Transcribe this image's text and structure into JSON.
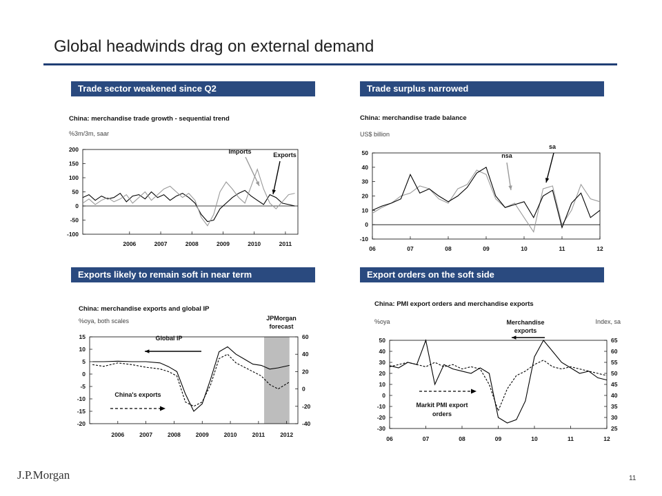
{
  "slide": {
    "title": "Global headwinds drag on external demand",
    "logo": "J.P.Morgan",
    "page_number": "11",
    "colors": {
      "header_bg": "#2a4a7f",
      "rule": "#1f3e74",
      "series_black": "#000000",
      "series_gray": "#999999",
      "shade": "#bdbdbd"
    }
  },
  "panels": [
    {
      "header": "Trade sector weakened since Q2"
    },
    {
      "header": "Trade surplus narrowed"
    },
    {
      "header": "Exports likely to remain soft in near term"
    },
    {
      "header": "Export orders on the soft side"
    }
  ],
  "chart_data": [
    {
      "type": "line",
      "title": "China: merchandise trade growth - sequential trend",
      "subtitle": "%3m/3m, saar",
      "ylim": [
        -100,
        200
      ],
      "yticks": [
        "200",
        "150",
        "100",
        "50",
        "0",
        "-50",
        "-100"
      ],
      "xlim": [
        2005.0,
        2011.9
      ],
      "xticks": [
        "2006",
        "2007",
        "2008",
        "2009",
        "2010",
        "2011"
      ],
      "annotations": [
        "Imports",
        "Exports"
      ],
      "series": [
        {
          "name": "Exports",
          "color": "#000000",
          "x": [
            2005.0,
            2005.2,
            2005.4,
            2005.6,
            2005.8,
            2006.0,
            2006.2,
            2006.4,
            2006.6,
            2006.8,
            2007.0,
            2007.2,
            2007.4,
            2007.6,
            2007.8,
            2008.0,
            2008.2,
            2008.4,
            2008.6,
            2008.8,
            2009.0,
            2009.2,
            2009.4,
            2009.6,
            2009.8,
            2010.0,
            2010.2,
            2010.4,
            2010.6,
            2010.8,
            2011.0,
            2011.2,
            2011.4,
            2011.6,
            2011.8
          ],
          "values": [
            30,
            40,
            20,
            35,
            25,
            30,
            45,
            15,
            35,
            40,
            25,
            50,
            30,
            40,
            20,
            35,
            45,
            30,
            10,
            -30,
            -55,
            -50,
            -10,
            10,
            30,
            45,
            55,
            35,
            20,
            5,
            40,
            30,
            10,
            5,
            0
          ]
        },
        {
          "name": "Imports",
          "color": "#999999",
          "x": [
            2005.0,
            2005.2,
            2005.4,
            2005.6,
            2005.8,
            2006.0,
            2006.2,
            2006.4,
            2006.6,
            2006.8,
            2007.0,
            2007.2,
            2007.4,
            2007.6,
            2007.8,
            2008.0,
            2008.2,
            2008.4,
            2008.6,
            2008.8,
            2009.0,
            2009.2,
            2009.4,
            2009.6,
            2009.8,
            2010.0,
            2010.2,
            2010.4,
            2010.6,
            2010.8,
            2011.0,
            2011.2,
            2011.4,
            2011.6,
            2011.8
          ],
          "values": [
            10,
            25,
            5,
            20,
            30,
            15,
            25,
            40,
            10,
            30,
            50,
            20,
            40,
            60,
            70,
            50,
            30,
            45,
            20,
            -40,
            -70,
            -30,
            50,
            85,
            60,
            30,
            10,
            70,
            130,
            60,
            10,
            -10,
            15,
            40,
            45
          ]
        }
      ]
    },
    {
      "type": "line",
      "title": "China: merchandise trade balance",
      "subtitle": "US$ billion",
      "ylim": [
        -10,
        50
      ],
      "yticks": [
        "50",
        "40",
        "30",
        "20",
        "10",
        "0",
        "-10"
      ],
      "xlim": [
        2006.0,
        2012.0
      ],
      "xticks": [
        "06",
        "07",
        "08",
        "09",
        "10",
        "11",
        "12"
      ],
      "annotations": [
        "nsa",
        "sa"
      ],
      "series": [
        {
          "name": "nsa",
          "color": "#999999",
          "x": [
            2006.0,
            2006.25,
            2006.5,
            2006.75,
            2007.0,
            2007.25,
            2007.5,
            2007.75,
            2008.0,
            2008.25,
            2008.5,
            2008.75,
            2009.0,
            2009.25,
            2009.5,
            2009.75,
            2010.0,
            2010.25,
            2010.5,
            2010.75,
            2011.0,
            2011.25,
            2011.5,
            2011.75,
            2012.0
          ],
          "values": [
            8,
            12,
            15,
            20,
            22,
            27,
            25,
            18,
            15,
            25,
            28,
            38,
            35,
            18,
            12,
            15,
            5,
            -5,
            25,
            27,
            0,
            10,
            28,
            18,
            16
          ]
        },
        {
          "name": "sa",
          "color": "#000000",
          "x": [
            2006.0,
            2006.25,
            2006.5,
            2006.75,
            2007.0,
            2007.25,
            2007.5,
            2007.75,
            2008.0,
            2008.25,
            2008.5,
            2008.75,
            2009.0,
            2009.25,
            2009.5,
            2009.75,
            2010.0,
            2010.25,
            2010.5,
            2010.75,
            2011.0,
            2011.25,
            2011.5,
            2011.75,
            2012.0
          ],
          "values": [
            10,
            13,
            15,
            18,
            35,
            22,
            25,
            20,
            16,
            20,
            26,
            36,
            40,
            20,
            12,
            14,
            16,
            5,
            20,
            24,
            -2,
            15,
            22,
            5,
            10
          ]
        }
      ]
    },
    {
      "type": "line",
      "title": "China: merchandise exports and global IP",
      "subtitle": "%oya, both scales",
      "ylim_left": [
        -20,
        15
      ],
      "ylim_right": [
        -40,
        60
      ],
      "yticks_left": [
        "15",
        "10",
        "5",
        "0",
        "-5",
        "-10",
        "-15",
        "-20"
      ],
      "yticks_right": [
        "60",
        "40",
        "20",
        "0",
        "-20",
        "-40"
      ],
      "xlim": [
        2005.5,
        2012.9
      ],
      "xticks": [
        "2006",
        "2007",
        "2008",
        "2009",
        "2010",
        "2011",
        "2012"
      ],
      "annotations": [
        "JPMorgan forecast",
        "Global IP",
        "China's exports"
      ],
      "forecast_region": [
        2011.7,
        2012.6
      ],
      "series": [
        {
          "name": "Global IP",
          "color": "#000000",
          "dash": false,
          "axis": "left",
          "x": [
            2005.6,
            2006.0,
            2006.5,
            2007.0,
            2007.5,
            2008.0,
            2008.3,
            2008.6,
            2008.9,
            2009.2,
            2009.5,
            2009.8,
            2010.1,
            2010.4,
            2010.7,
            2011.0,
            2011.3,
            2011.6,
            2011.9,
            2012.2,
            2012.6
          ],
          "values": [
            5,
            5,
            5.2,
            5,
            5,
            4.5,
            3,
            1,
            -8,
            -15,
            -12,
            -2,
            9,
            11,
            8,
            6,
            4,
            3.5,
            2,
            2.5,
            3.5
          ]
        },
        {
          "name": "China's exports",
          "color": "#000000",
          "dash": true,
          "axis": "right",
          "x": [
            2005.6,
            2006.0,
            2006.5,
            2007.0,
            2007.5,
            2008.0,
            2008.3,
            2008.6,
            2008.9,
            2009.2,
            2009.5,
            2009.8,
            2010.1,
            2010.4,
            2010.7,
            2011.0,
            2011.3,
            2011.6,
            2011.9,
            2012.2,
            2012.6
          ],
          "values": [
            28,
            26,
            30,
            28,
            25,
            23,
            20,
            15,
            -15,
            -20,
            -15,
            5,
            35,
            40,
            30,
            25,
            20,
            15,
            5,
            0,
            8
          ]
        }
      ]
    },
    {
      "type": "line",
      "title": "China: PMI export orders and merchandise exports",
      "ylabel_left": "%oya",
      "ylabel_right": "Index, sa",
      "ylim_left": [
        -30,
        50
      ],
      "ylim_right": [
        25,
        65
      ],
      "yticks_left": [
        "50",
        "40",
        "30",
        "20",
        "10",
        "0",
        "-10",
        "-20",
        "-30"
      ],
      "yticks_right": [
        "65",
        "60",
        "55",
        "50",
        "45",
        "40",
        "35",
        "30",
        "25"
      ],
      "xlim": [
        2006.0,
        2012.0
      ],
      "xticks": [
        "06",
        "07",
        "08",
        "09",
        "10",
        "11",
        "12"
      ],
      "annotations": [
        "Merchandise exports",
        "Markit PMI export orders"
      ],
      "series": [
        {
          "name": "Merchandise exports",
          "color": "#000000",
          "dash": false,
          "axis": "left",
          "x": [
            2006.0,
            2006.25,
            2006.5,
            2006.75,
            2007.0,
            2007.25,
            2007.5,
            2007.75,
            2008.0,
            2008.25,
            2008.5,
            2008.75,
            2009.0,
            2009.25,
            2009.5,
            2009.75,
            2010.0,
            2010.25,
            2010.5,
            2010.75,
            2011.0,
            2011.25,
            2011.5,
            2011.75,
            2012.0
          ],
          "values": [
            27,
            25,
            30,
            28,
            50,
            10,
            28,
            24,
            22,
            20,
            25,
            20,
            -20,
            -25,
            -22,
            -5,
            35,
            50,
            40,
            30,
            25,
            20,
            22,
            16,
            14
          ]
        },
        {
          "name": "Markit PMI export orders",
          "color": "#000000",
          "dash": true,
          "axis": "right",
          "x": [
            2006.0,
            2006.25,
            2006.5,
            2006.75,
            2007.0,
            2007.25,
            2007.5,
            2007.75,
            2008.0,
            2008.25,
            2008.5,
            2008.75,
            2009.0,
            2009.25,
            2009.5,
            2009.75,
            2010.0,
            2010.25,
            2010.5,
            2010.75,
            2011.0,
            2011.25,
            2011.5,
            2011.75,
            2012.0
          ],
          "values": [
            53,
            54,
            55,
            54,
            53,
            55,
            53,
            54,
            52,
            53,
            52,
            45,
            33,
            43,
            49,
            51,
            54,
            56,
            53,
            52,
            53,
            52,
            51,
            50,
            49
          ]
        }
      ]
    }
  ]
}
